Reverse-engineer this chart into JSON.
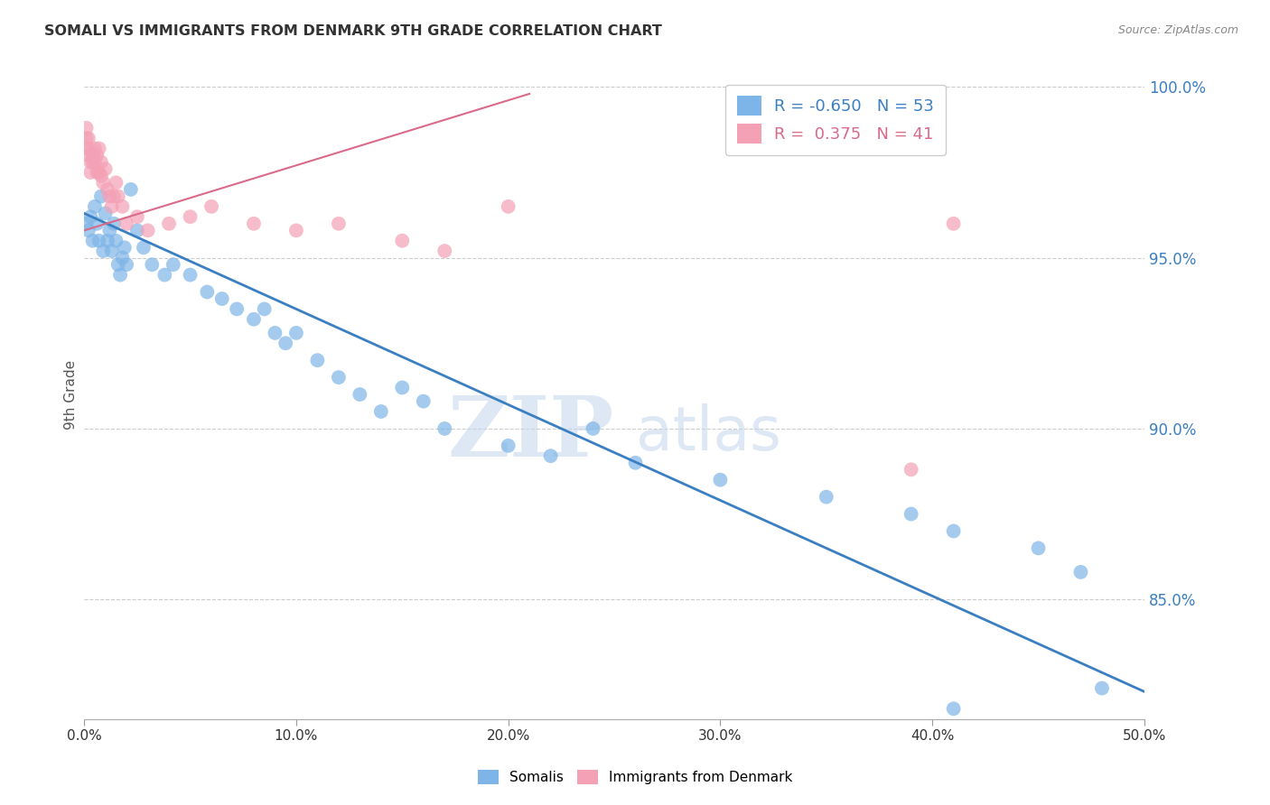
{
  "title": "SOMALI VS IMMIGRANTS FROM DENMARK 9TH GRADE CORRELATION CHART",
  "source": "Source: ZipAtlas.com",
  "ylabel": "9th Grade",
  "xlim": [
    0.0,
    0.5
  ],
  "ylim": [
    0.815,
    1.005
  ],
  "ytick_values": [
    0.85,
    0.9,
    0.95,
    1.0
  ],
  "xtick_values": [
    0.0,
    0.1,
    0.2,
    0.3,
    0.4,
    0.5
  ],
  "somalis_R": -0.65,
  "somalis_N": 53,
  "denmark_R": 0.375,
  "denmark_N": 41,
  "somali_color": "#7EB5E8",
  "denmark_color": "#F4A0B5",
  "somali_line_color": "#3A7FC1",
  "denmark_line_color": "#D96A8A",
  "background_color": "#FFFFFF",
  "watermark_zip": "ZIP",
  "watermark_atlas": "atlas",
  "somali_x": [
    0.001,
    0.002,
    0.003,
    0.004,
    0.005,
    0.006,
    0.007,
    0.008,
    0.009,
    0.01,
    0.011,
    0.012,
    0.013,
    0.014,
    0.015,
    0.016,
    0.017,
    0.018,
    0.019,
    0.02,
    0.022,
    0.025,
    0.028,
    0.032,
    0.038,
    0.042,
    0.05,
    0.058,
    0.065,
    0.072,
    0.08,
    0.085,
    0.09,
    0.095,
    0.1,
    0.11,
    0.12,
    0.13,
    0.14,
    0.15,
    0.16,
    0.17,
    0.2,
    0.22,
    0.24,
    0.26,
    0.3,
    0.35,
    0.39,
    0.41,
    0.45,
    0.47,
    0.48
  ],
  "somali_y": [
    0.96,
    0.958,
    0.962,
    0.955,
    0.965,
    0.96,
    0.955,
    0.968,
    0.952,
    0.963,
    0.955,
    0.958,
    0.952,
    0.96,
    0.955,
    0.948,
    0.945,
    0.95,
    0.953,
    0.948,
    0.97,
    0.958,
    0.953,
    0.948,
    0.945,
    0.948,
    0.945,
    0.94,
    0.938,
    0.935,
    0.932,
    0.935,
    0.928,
    0.925,
    0.928,
    0.92,
    0.915,
    0.91,
    0.905,
    0.912,
    0.908,
    0.9,
    0.895,
    0.892,
    0.9,
    0.89,
    0.885,
    0.88,
    0.875,
    0.87,
    0.865,
    0.858,
    0.824
  ],
  "denmark_x": [
    0.001,
    0.001,
    0.001,
    0.002,
    0.002,
    0.002,
    0.003,
    0.003,
    0.004,
    0.004,
    0.005,
    0.005,
    0.006,
    0.006,
    0.007,
    0.007,
    0.008,
    0.008,
    0.009,
    0.01,
    0.011,
    0.012,
    0.013,
    0.014,
    0.015,
    0.016,
    0.018,
    0.02,
    0.025,
    0.03,
    0.04,
    0.05,
    0.06,
    0.08,
    0.1,
    0.12,
    0.15,
    0.17,
    0.2,
    0.39,
    0.41
  ],
  "denmark_y": [
    0.988,
    0.985,
    0.982,
    0.985,
    0.982,
    0.98,
    0.978,
    0.975,
    0.98,
    0.978,
    0.982,
    0.978,
    0.975,
    0.98,
    0.975,
    0.982,
    0.978,
    0.974,
    0.972,
    0.976,
    0.97,
    0.968,
    0.965,
    0.968,
    0.972,
    0.968,
    0.965,
    0.96,
    0.962,
    0.958,
    0.96,
    0.962,
    0.965,
    0.96,
    0.958,
    0.96,
    0.955,
    0.952,
    0.965,
    0.888,
    0.96
  ],
  "somali_line_x": [
    0.0,
    0.5
  ],
  "somali_line_y": [
    0.963,
    0.823
  ],
  "denmark_line_x": [
    0.0,
    0.21
  ],
  "denmark_line_y": [
    0.958,
    0.998
  ]
}
